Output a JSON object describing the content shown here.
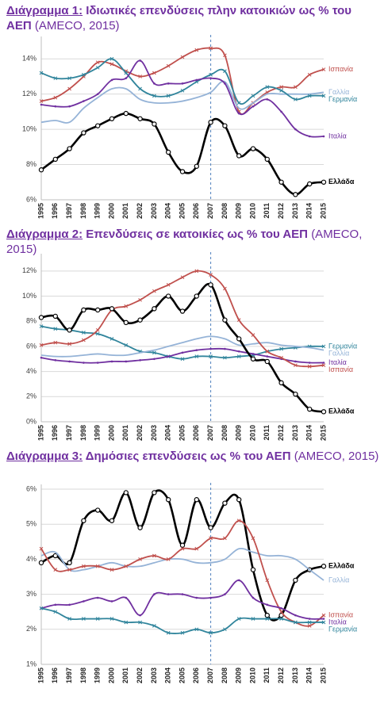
{
  "chart_data": [
    {
      "type": "line",
      "title_prefix": "Διάγραμμα 1:",
      "title": "Ιδιωτικές επενδύσεις πλην κατοικιών ως % του ΑΕΠ",
      "source": "(AMECO, 2015)",
      "categories": [
        "1995",
        "1996",
        "1997",
        "1998",
        "1999",
        "2000",
        "2001",
        "2002",
        "2003",
        "2004",
        "2005",
        "2006",
        "2007",
        "2008",
        "2009",
        "2010",
        "2011",
        "2012",
        "2013",
        "2014",
        "2015"
      ],
      "ylim": [
        6,
        15
      ],
      "yticks": [
        {
          "value": 6,
          "label": "6%"
        },
        {
          "value": 8,
          "label": "8%"
        },
        {
          "value": 10,
          "label": "10%"
        },
        {
          "value": 12,
          "label": "12%"
        },
        {
          "value": 14,
          "label": "14%"
        }
      ],
      "grid": true,
      "vline_at": "2007",
      "series": [
        {
          "name": "Ισπανία",
          "color": "#c0504d",
          "marker": "cross",
          "values": [
            11.6,
            11.8,
            12.3,
            13.0,
            13.8,
            13.7,
            13.3,
            13.0,
            13.2,
            13.6,
            14.1,
            14.5,
            14.6,
            14.2,
            11.0,
            11.5,
            12.1,
            12.4,
            12.4,
            13.1,
            13.4
          ]
        },
        {
          "name": "Γαλλία",
          "color": "#95b3d7",
          "marker": "none",
          "values": [
            10.4,
            10.5,
            10.4,
            11.2,
            11.8,
            12.3,
            12.3,
            11.7,
            11.5,
            11.5,
            11.6,
            11.8,
            12.1,
            12.7,
            11.2,
            11.5,
            12.0,
            12.0,
            12.0,
            12.0,
            12.1
          ]
        },
        {
          "name": "Γερμανία",
          "color": "#31859c",
          "marker": "cross",
          "values": [
            13.2,
            12.9,
            12.9,
            13.1,
            13.5,
            14.0,
            13.2,
            12.3,
            11.9,
            11.9,
            12.2,
            12.7,
            13.1,
            13.3,
            11.5,
            11.9,
            12.4,
            12.2,
            11.7,
            11.9,
            11.9
          ]
        },
        {
          "name": "Ιταλία",
          "color": "#7030a0",
          "marker": "dot",
          "values": [
            11.4,
            11.3,
            11.3,
            11.6,
            12.0,
            12.8,
            12.9,
            13.9,
            12.6,
            12.6,
            12.6,
            12.8,
            12.9,
            12.6,
            10.9,
            11.3,
            11.7,
            11.0,
            10.0,
            9.6,
            9.6
          ]
        },
        {
          "name": "Ελλάδα",
          "color": "#000000",
          "marker": "circle",
          "values": [
            7.7,
            8.3,
            8.9,
            9.8,
            10.2,
            10.6,
            10.9,
            10.6,
            10.3,
            8.7,
            7.6,
            7.9,
            10.4,
            10.2,
            8.5,
            8.9,
            8.3,
            7.0,
            6.3,
            6.9,
            7.0
          ]
        }
      ]
    },
    {
      "type": "line",
      "title_prefix": "Διάγραμμα 2:",
      "title": "Επενδύσεις σε κατοικίες ως % του ΑΕΠ",
      "source": "(AMECO, 2015)",
      "categories": [
        "1995",
        "1996",
        "1997",
        "1998",
        "1999",
        "2000",
        "2001",
        "2002",
        "2003",
        "2004",
        "2005",
        "2006",
        "2007",
        "2008",
        "2009",
        "2010",
        "2011",
        "2012",
        "2013",
        "2014",
        "2015"
      ],
      "ylim": [
        0,
        13
      ],
      "yticks": [
        {
          "value": 0,
          "label": "0%"
        },
        {
          "value": 2,
          "label": "2%"
        },
        {
          "value": 4,
          "label": "4%"
        },
        {
          "value": 6,
          "label": "6%"
        },
        {
          "value": 8,
          "label": "8%"
        },
        {
          "value": 10,
          "label": "10%"
        },
        {
          "value": 12,
          "label": "12%"
        }
      ],
      "grid": true,
      "vline_at": "2007",
      "series": [
        {
          "name": "Γερμανία",
          "color": "#31859c",
          "marker": "cross",
          "values": [
            7.6,
            7.4,
            7.3,
            7.1,
            7.0,
            6.6,
            6.1,
            5.6,
            5.5,
            5.2,
            5.0,
            5.2,
            5.2,
            5.1,
            5.2,
            5.3,
            5.6,
            5.8,
            5.9,
            6.0,
            6.0
          ]
        },
        {
          "name": "Γαλλία",
          "color": "#95b3d7",
          "marker": "none",
          "values": [
            5.3,
            5.2,
            5.2,
            5.3,
            5.4,
            5.3,
            5.3,
            5.5,
            5.7,
            6.0,
            6.3,
            6.6,
            6.8,
            6.6,
            6.1,
            6.2,
            6.3,
            6.1,
            6.0,
            5.9,
            5.7
          ]
        },
        {
          "name": "Ιταλία",
          "color": "#7030a0",
          "marker": "dot",
          "values": [
            5.1,
            4.9,
            4.8,
            4.7,
            4.7,
            4.8,
            4.8,
            4.9,
            5.0,
            5.2,
            5.5,
            5.7,
            5.8,
            5.8,
            5.6,
            5.4,
            5.2,
            5.0,
            4.8,
            4.7,
            4.7
          ]
        },
        {
          "name": "Ισπανία",
          "color": "#c0504d",
          "marker": "cross",
          "values": [
            6.1,
            6.3,
            6.2,
            6.5,
            7.3,
            8.9,
            9.2,
            9.7,
            10.4,
            10.9,
            11.5,
            12.0,
            11.7,
            10.6,
            8.1,
            6.9,
            5.6,
            5.1,
            4.5,
            4.4,
            4.5
          ]
        },
        {
          "name": "Ελλάδα",
          "color": "#000000",
          "marker": "circle",
          "values": [
            8.3,
            8.4,
            7.3,
            8.9,
            8.9,
            9.0,
            7.9,
            8.1,
            9.0,
            10.0,
            8.8,
            10.0,
            10.9,
            8.1,
            6.6,
            5.0,
            4.8,
            3.1,
            2.2,
            1.0,
            0.8
          ]
        }
      ]
    },
    {
      "type": "line",
      "title_prefix": "Διάγραμμα 3:",
      "title": "Δημόσιες επενδύσεις ως % του ΑΕΠ",
      "source": "(AMECO, 2015)",
      "categories": [
        "1995",
        "1996",
        "1997",
        "1998",
        "1999",
        "2000",
        "2001",
        "2002",
        "2003",
        "2004",
        "2005",
        "2006",
        "2007",
        "2008",
        "2009",
        "2010",
        "2011",
        "2012",
        "2013",
        "2014",
        "2015"
      ],
      "ylim": [
        1,
        6
      ],
      "yticks": [
        {
          "value": 1,
          "label": "1%"
        },
        {
          "value": 2,
          "label": "2%"
        },
        {
          "value": 3,
          "label": "3%"
        },
        {
          "value": 4,
          "label": "4%"
        },
        {
          "value": 5,
          "label": "5%"
        },
        {
          "value": 6,
          "label": "6%"
        }
      ],
      "grid": true,
      "vline_at": "2007",
      "series": [
        {
          "name": "Ελλάδα",
          "color": "#000000",
          "marker": "circle",
          "values": [
            3.9,
            4.1,
            3.9,
            5.1,
            5.4,
            5.1,
            5.9,
            4.9,
            5.9,
            5.7,
            4.4,
            5.7,
            4.9,
            5.6,
            5.7,
            3.7,
            2.4,
            2.4,
            3.4,
            3.7,
            3.8
          ]
        },
        {
          "name": "Γαλλία",
          "color": "#95b3d7",
          "marker": "none",
          "values": [
            4.1,
            4.2,
            3.7,
            3.7,
            3.8,
            3.9,
            3.8,
            3.8,
            3.9,
            4.0,
            4.0,
            3.9,
            3.9,
            4.0,
            4.3,
            4.2,
            4.1,
            4.1,
            4.0,
            3.7,
            3.4
          ]
        },
        {
          "name": "Ισπανία",
          "color": "#c0504d",
          "marker": "cross",
          "values": [
            4.3,
            3.7,
            3.7,
            3.8,
            3.8,
            3.7,
            3.8,
            4.0,
            4.1,
            4.0,
            4.3,
            4.3,
            4.6,
            4.6,
            5.1,
            4.6,
            3.4,
            2.5,
            2.2,
            2.1,
            2.4
          ]
        },
        {
          "name": "Ιταλία",
          "color": "#7030a0",
          "marker": "dot",
          "values": [
            2.6,
            2.7,
            2.7,
            2.8,
            2.9,
            2.8,
            2.9,
            2.4,
            3.0,
            3.0,
            3.0,
            2.9,
            2.9,
            3.0,
            3.4,
            2.9,
            2.7,
            2.6,
            2.4,
            2.3,
            2.3
          ]
        },
        {
          "name": "Γερμανία",
          "color": "#31859c",
          "marker": "cross",
          "values": [
            2.6,
            2.5,
            2.3,
            2.3,
            2.3,
            2.3,
            2.2,
            2.2,
            2.1,
            1.9,
            1.9,
            2.0,
            1.9,
            2.0,
            2.3,
            2.3,
            2.3,
            2.3,
            2.2,
            2.2,
            2.2
          ]
        }
      ]
    }
  ]
}
